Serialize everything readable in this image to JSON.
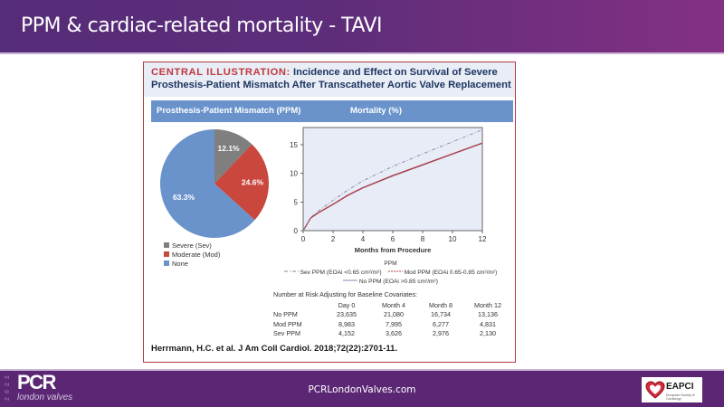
{
  "slide": {
    "title": "PPM & cardiac-related mortality - TAVI",
    "footer_url": "PCRLondonValves.com",
    "footer_logo_year": "2022",
    "footer_logo_main": "PCR",
    "footer_logo_sub": "london valves",
    "partner_logo": "EAPCI",
    "partner_logo_sub": "European Society of Cardiology"
  },
  "figure": {
    "title_prefix": "CENTRAL ILLUSTRATION:",
    "title_rest": " Incidence and Effect on Survival of Severe Prosthesis-Patient Mismatch After Transcatheter Aortic Valve Replacement",
    "band_left": "Prosthesis-Patient Mismatch (PPM)",
    "band_right": "Mortality (%)",
    "citation": "Herrmann, H.C. et al. J Am Coll Cardiol. 2018;72(22):2701-11.",
    "risk_table": {
      "title": "Number at Risk Adjusting for Baseline Covariates:",
      "columns": [
        "",
        "Day 0",
        "Month 4",
        "Month 8",
        "Month 12"
      ],
      "rows": [
        [
          "No PPM",
          "23,635",
          "21,080",
          "16,734",
          "13,136"
        ],
        [
          "Mod PPM",
          "8,983",
          "7,995",
          "6,277",
          "4,831"
        ],
        [
          "Sev PPM",
          "4,152",
          "3,626",
          "2,976",
          "2,130"
        ]
      ]
    }
  },
  "chart_data": [
    {
      "type": "pie",
      "title": "Prosthesis-Patient Mismatch (PPM)",
      "categories": [
        "Severe (Sev)",
        "Moderate (Mod)",
        "None"
      ],
      "values": [
        12.1,
        24.6,
        63.3
      ],
      "labels": [
        "12.1%",
        "24.6%",
        "63.3%"
      ],
      "colors": [
        "#7f7f7f",
        "#c9473d",
        "#6a93cc"
      ],
      "legend": "bottom"
    },
    {
      "type": "line",
      "title": "Mortality (%)",
      "xlabel": "Months from Procedure",
      "ylabel": "",
      "xlim": [
        0,
        12
      ],
      "ylim": [
        0,
        18
      ],
      "xticks": [
        0,
        2,
        4,
        6,
        8,
        10,
        12
      ],
      "yticks": [
        0,
        5,
        10,
        15
      ],
      "legend_title": "PPM",
      "legend": "bottom",
      "x": [
        0,
        0.5,
        1,
        2,
        3,
        4,
        6,
        8,
        10,
        12
      ],
      "series": [
        {
          "name": "Sev PPM (EOAi <0.65 cm²/m²)",
          "color": "#7d8aa0",
          "style": "dash-dot",
          "values": [
            0,
            2.3,
            3.4,
            5.3,
            7.1,
            8.7,
            11.2,
            13.4,
            15.5,
            17.6
          ]
        },
        {
          "name": "Mod PPM (EOAi 0.65-0.85 cm²/m²)",
          "color": "#b0404a",
          "style": "dashed",
          "values": [
            0,
            2.2,
            3.1,
            4.6,
            6.2,
            7.5,
            9.6,
            11.5,
            13.4,
            15.3
          ]
        },
        {
          "name": "No PPM (EOAi >0.85 cm²/m²)",
          "color": "#7d8fb0",
          "style": "solid",
          "values": [
            0,
            2.15,
            3.05,
            4.55,
            6.1,
            7.4,
            9.5,
            11.4,
            13.3,
            15.2
          ]
        }
      ]
    }
  ]
}
